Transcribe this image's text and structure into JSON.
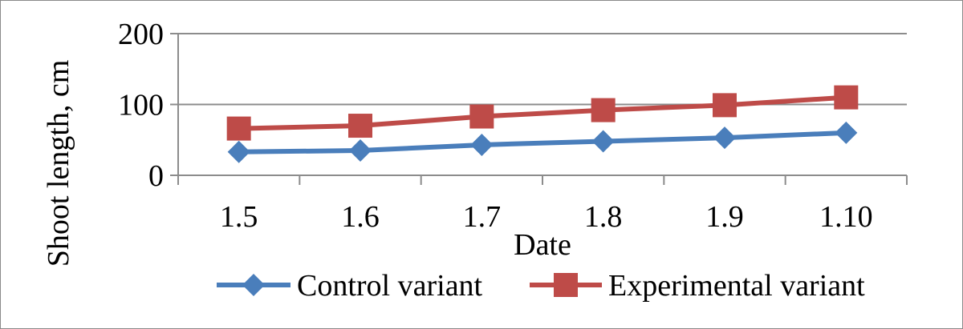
{
  "chart_data": {
    "type": "line",
    "title": "",
    "xlabel": "Date",
    "ylabel": "Shoot length, cm",
    "categories": [
      "1.5",
      "1.6",
      "1.7",
      "1.8",
      "1.9",
      "1.10"
    ],
    "ylim": [
      0,
      200
    ],
    "yticks": [
      0,
      100,
      200
    ],
    "grid": true,
    "legend_position": "bottom",
    "series": [
      {
        "name": "Control variant",
        "values": [
          33,
          35,
          43,
          48,
          53,
          60
        ],
        "color": "#4a7ebb",
        "marker": "diamond"
      },
      {
        "name": "Experimental variant",
        "values": [
          66,
          70,
          83,
          92,
          99,
          110
        ],
        "color": "#be4b48",
        "marker": "square"
      }
    ]
  }
}
